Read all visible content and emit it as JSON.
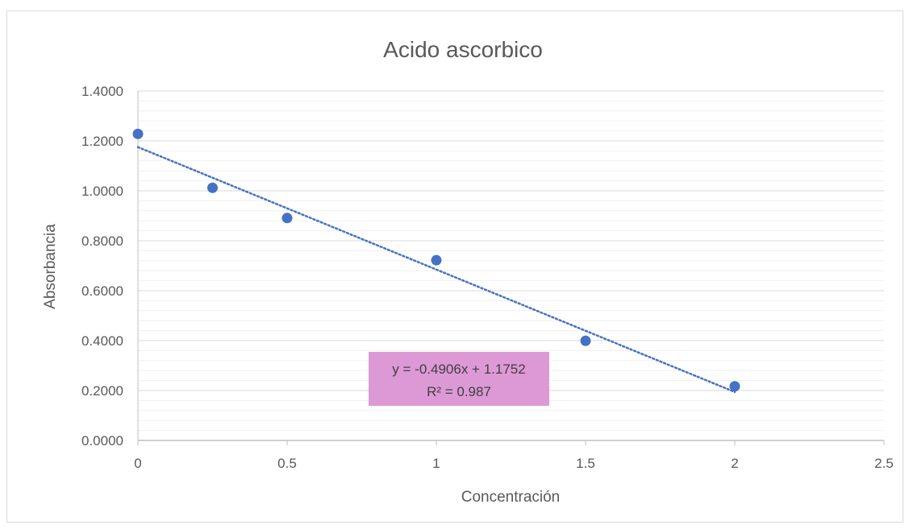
{
  "chart_data": {
    "type": "scatter",
    "title": "Acido ascorbico",
    "xlabel": "Concentración",
    "ylabel": "Absorbancia",
    "xlim": [
      0,
      2.5
    ],
    "ylim": [
      0,
      1.4
    ],
    "x_ticks": [
      "0",
      "0.5",
      "1",
      "1.5",
      "2",
      "2.5"
    ],
    "y_ticks": [
      "0.0000",
      "0.2000",
      "0.4000",
      "0.6000",
      "0.8000",
      "1.0000",
      "1.2000",
      "1.4000"
    ],
    "series": [
      {
        "x": [
          0,
          0.25,
          0.5,
          1,
          1.5,
          2
        ],
        "y": [
          1.228,
          1.012,
          0.891,
          0.722,
          0.399,
          0.217
        ]
      }
    ],
    "trendline": {
      "type": "linear",
      "slope": -0.4906,
      "intercept": 1.1752,
      "x_range": [
        0,
        2
      ],
      "equation_label": "y = -0.4906x + 1.1752",
      "r2_label": "R² = 0.987"
    },
    "colors": {
      "marker": "#4472c4",
      "trendline": "#4472c4",
      "label_box": "#dd99d6",
      "major_grid": "#d9d9d9",
      "minor_grid": "#f0f0f0"
    },
    "grid": "major and minor horizontal"
  }
}
